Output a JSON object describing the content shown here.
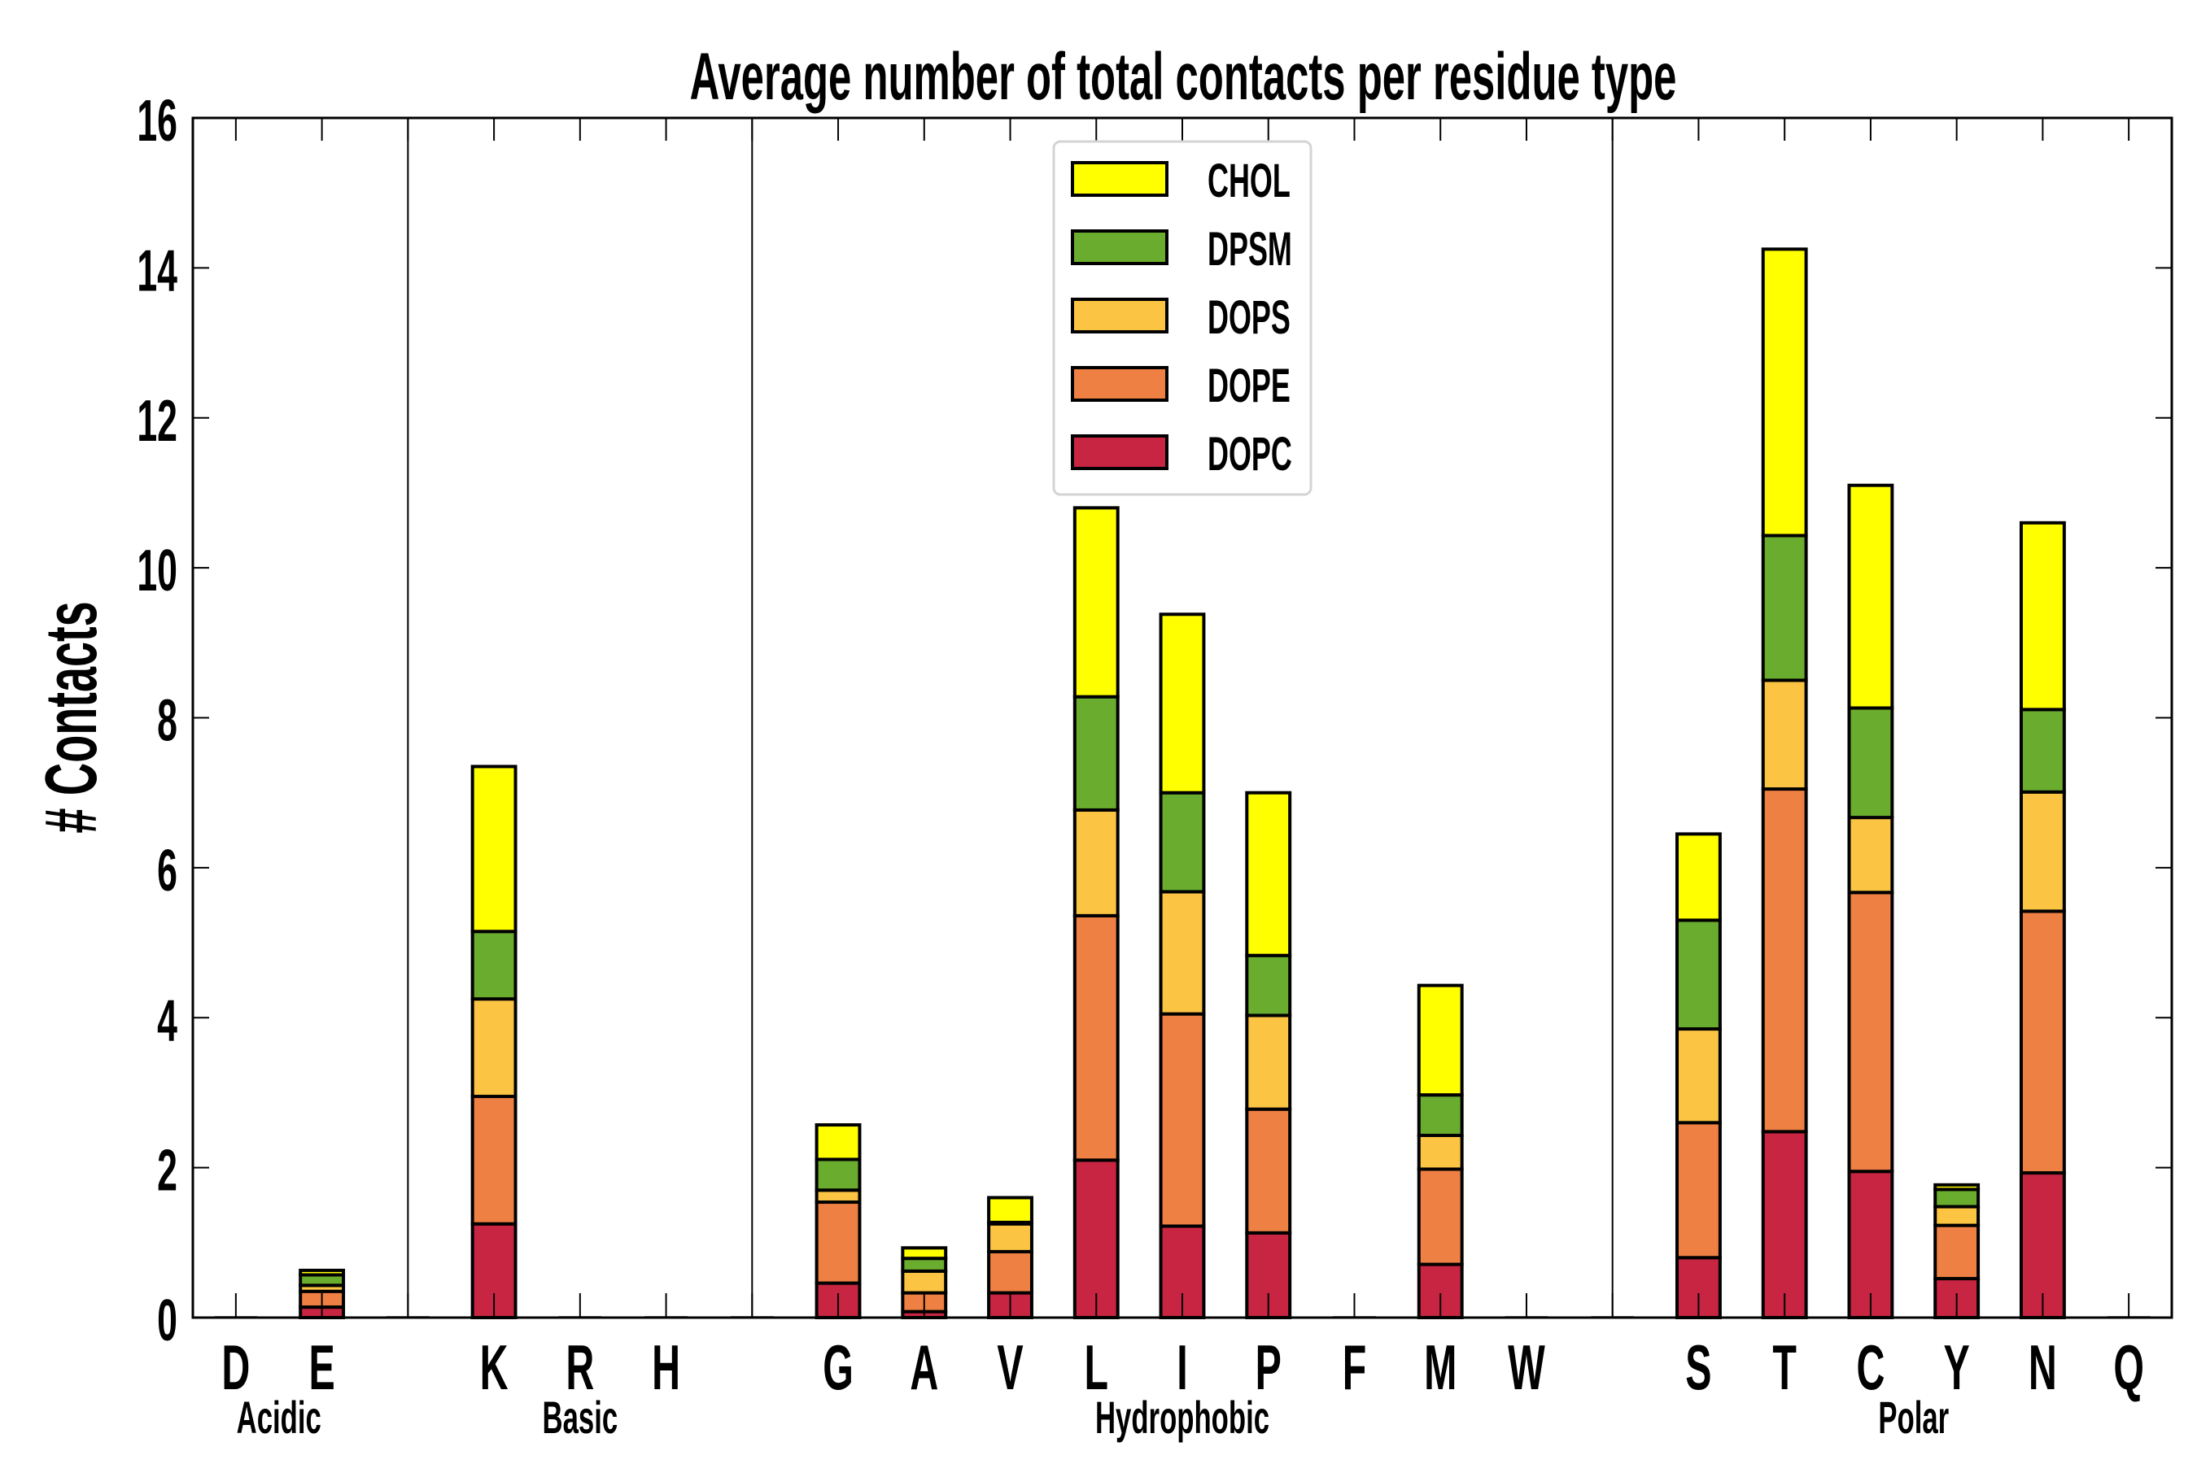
{
  "chart_data": {
    "type": "bar",
    "stacked": true,
    "title": "Average number of total contacts per residue type",
    "xlabel": "",
    "ylabel": "# Contacts",
    "ylim": [
      0,
      16
    ],
    "yticks": [
      "0",
      "2",
      "4",
      "6",
      "8",
      "10",
      "12",
      "14",
      "16"
    ],
    "grid": false,
    "legend_position": "top-center",
    "categories": [
      "D",
      "E",
      "",
      "K",
      "R",
      "H",
      "",
      "G",
      "A",
      "V",
      "L",
      "I",
      "P",
      "F",
      "M",
      "W",
      "",
      "S",
      "T",
      "C",
      "Y",
      "N",
      "Q"
    ],
    "groups": [
      {
        "label": "Acidic",
        "members": [
          "D",
          "E"
        ]
      },
      {
        "label": "Basic",
        "members": [
          "K",
          "R",
          "H"
        ]
      },
      {
        "label": "Hydrophobic",
        "members": [
          "G",
          "A",
          "V",
          "L",
          "I",
          "P",
          "F",
          "M",
          "W"
        ]
      },
      {
        "label": "Polar",
        "members": [
          "S",
          "T",
          "C",
          "Y",
          "N",
          "Q"
        ]
      }
    ],
    "series": [
      {
        "name": "DOPC",
        "color": "#C72542",
        "values": [
          0,
          0.14,
          0,
          1.25,
          0,
          0,
          0,
          0.46,
          0.08,
          0.33,
          2.1,
          1.22,
          1.13,
          0,
          0.71,
          0,
          0,
          0.8,
          2.48,
          1.95,
          0.52,
          1.93,
          0
        ]
      },
      {
        "name": "DOPE",
        "color": "#EF8044",
        "values": [
          0,
          0.21,
          0,
          1.7,
          0,
          0,
          0,
          1.08,
          0.25,
          0.55,
          3.26,
          2.83,
          1.65,
          0,
          1.27,
          0,
          0,
          1.8,
          4.57,
          3.72,
          0.71,
          3.49,
          0
        ]
      },
      {
        "name": "DOPS",
        "color": "#FBC443",
        "values": [
          0,
          0.08,
          0,
          1.3,
          0,
          0,
          0,
          0.16,
          0.29,
          0.37,
          1.41,
          1.63,
          1.25,
          0,
          0.45,
          0,
          0,
          1.25,
          1.45,
          1.0,
          0.25,
          1.59,
          0
        ]
      },
      {
        "name": "DPSM",
        "color": "#6AAD2E",
        "values": [
          0,
          0.14,
          0,
          0.9,
          0,
          0,
          0,
          0.41,
          0.17,
          0.02,
          1.51,
          1.32,
          0.8,
          0,
          0.54,
          0,
          0,
          1.45,
          1.93,
          1.46,
          0.23,
          1.1,
          0
        ]
      },
      {
        "name": "CHOL",
        "color": "#FFFF00",
        "values": [
          0,
          0.06,
          0,
          2.2,
          0,
          0,
          0,
          0.46,
          0.14,
          0.33,
          2.52,
          2.38,
          2.17,
          0,
          1.46,
          0,
          0,
          1.15,
          3.82,
          2.97,
          0.06,
          2.49,
          0
        ]
      }
    ],
    "legend_order": [
      "CHOL",
      "DPSM",
      "DOPS",
      "DOPE",
      "DOPC"
    ]
  }
}
